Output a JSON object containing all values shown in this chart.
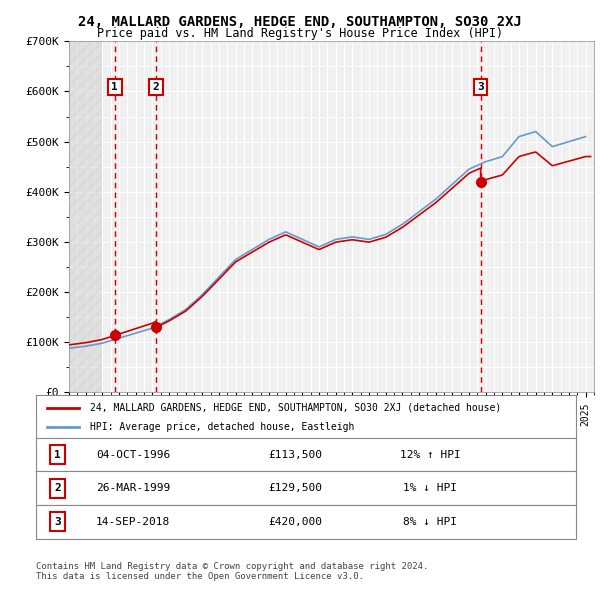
{
  "title": "24, MALLARD GARDENS, HEDGE END, SOUTHAMPTON, SO30 2XJ",
  "subtitle": "Price paid vs. HM Land Registry's House Price Index (HPI)",
  "xlabel": "",
  "ylabel": "",
  "ylim": [
    0,
    700000
  ],
  "yticks": [
    0,
    100000,
    200000,
    300000,
    400000,
    500000,
    600000,
    700000
  ],
  "ytick_labels": [
    "£0",
    "£100K",
    "£200K",
    "£300K",
    "£400K",
    "£500K",
    "£600K",
    "£700K"
  ],
  "background_color": "#ffffff",
  "plot_bg_color": "#f0f0f0",
  "grid_color": "#ffffff",
  "purchases": [
    {
      "date": 1996.75,
      "price": 113500,
      "label": "1"
    },
    {
      "date": 1999.23,
      "price": 129500,
      "label": "2"
    },
    {
      "date": 2018.7,
      "price": 420000,
      "label": "3"
    }
  ],
  "purchase_color": "#cc0000",
  "hpi_color": "#6699cc",
  "legend_house_label": "24, MALLARD GARDENS, HEDGE END, SOUTHAMPTON, SO30 2XJ (detached house)",
  "legend_hpi_label": "HPI: Average price, detached house, Eastleigh",
  "table_rows": [
    {
      "num": "1",
      "date": "04-OCT-1996",
      "price": "£113,500",
      "hpi": "12% ↑ HPI"
    },
    {
      "num": "2",
      "date": "26-MAR-1999",
      "price": "£129,500",
      "hpi": "1% ↓ HPI"
    },
    {
      "num": "3",
      "date": "14-SEP-2018",
      "price": "£420,000",
      "hpi": "8% ↓ HPI"
    }
  ],
  "footer": "Contains HM Land Registry data © Crown copyright and database right 2024.\nThis data is licensed under the Open Government Licence v3.0.",
  "xmin": 1994,
  "xmax": 2025.5,
  "hatch_xmin": 1994,
  "hatch_xmax": 1996.0
}
